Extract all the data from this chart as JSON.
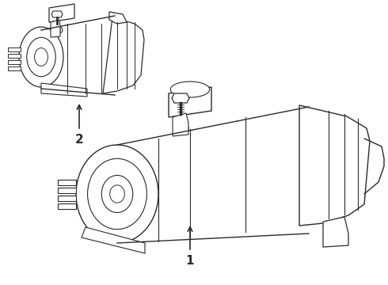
{
  "background_color": "#ffffff",
  "line_color": "#2a2a2a",
  "line_width": 1.0,
  "label1_text": "1",
  "label2_text": "2",
  "font_size": 11,
  "fig_width": 4.9,
  "fig_height": 3.6,
  "dpi": 100
}
